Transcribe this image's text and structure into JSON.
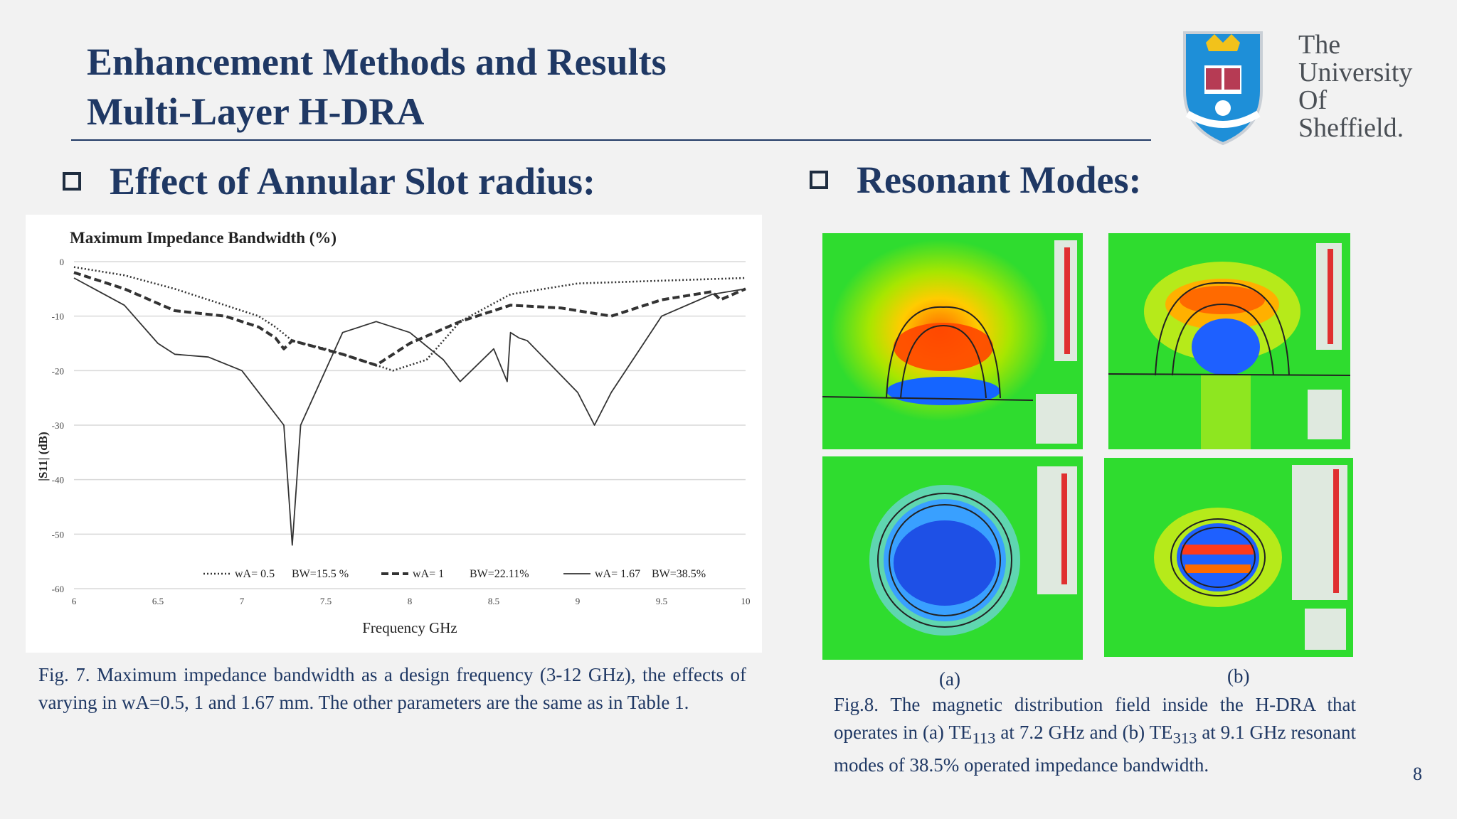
{
  "slide": {
    "title_line1": "Enhancement Methods and Results",
    "title_line2": "Multi-Layer H-DRA",
    "page_number": "8"
  },
  "logo": {
    "line1": "The",
    "line2": "University",
    "line3": "Of",
    "line4": "Sheffield."
  },
  "left": {
    "heading": "Effect of Annular Slot radius:",
    "caption": "Fig. 7. Maximum impedance bandwidth as a design frequency (3-12 GHz), the effects of varying in wA=0.5, 1 and 1.67 mm. The other parameters are the same as in Table 1."
  },
  "right": {
    "heading": "Resonant Modes:",
    "label_a": "(a)",
    "label_b": "(b)",
    "caption_part1": "Fig.8. The magnetic distribution field inside the H-DRA that operates in (a) TE",
    "sub1": "113",
    "caption_part2": " at 7.2 GHz and (b) TE",
    "sub2": "313",
    "caption_part3": " at 9.1 GHz resonant modes of 38.5% operated impedance bandwidth."
  },
  "chart_data": {
    "type": "line",
    "title": "Maximum Impedance Bandwidth (%)",
    "xlabel": "Frequency GHz",
    "ylabel": "|S11| (dB)",
    "xlim": [
      6,
      10
    ],
    "ylim": [
      -60,
      0
    ],
    "x_ticks": [
      "6",
      "6.5",
      "7",
      "7.5",
      "8",
      "8.5",
      "9",
      "9.5",
      "10"
    ],
    "y_ticks": [
      "0",
      "-10",
      "-20",
      "-30",
      "-40",
      "-50",
      "-60"
    ],
    "grid": true,
    "legend_position": "bottom",
    "series": [
      {
        "name": "wA= 0.5",
        "bw_label": "BW=15.5 %",
        "style": "dotted",
        "x": [
          6.0,
          6.3,
          6.6,
          6.9,
          7.1,
          7.2,
          7.3,
          7.5,
          7.7,
          7.9,
          8.1,
          8.3,
          8.6,
          9.0,
          9.5,
          10.0
        ],
        "y": [
          -1,
          -2.5,
          -5,
          -8,
          -10,
          -12,
          -14.5,
          -16,
          -18,
          -20,
          -18,
          -11,
          -6,
          -4,
          -3.5,
          -3
        ]
      },
      {
        "name": "wA= 1",
        "bw_label": "BW=22.11%",
        "style": "dashed",
        "x": [
          6.0,
          6.3,
          6.6,
          6.9,
          7.1,
          7.2,
          7.25,
          7.3,
          7.6,
          7.8,
          8.0,
          8.3,
          8.6,
          8.9,
          9.2,
          9.5,
          9.8,
          9.85,
          10.0
        ],
        "y": [
          -2,
          -5,
          -9,
          -10,
          -12,
          -14,
          -16,
          -14.5,
          -17,
          -19,
          -15,
          -11,
          -8,
          -8.5,
          -10,
          -7,
          -5.5,
          -7,
          -5
        ]
      },
      {
        "name": "wA= 1.67",
        "bw_label": "BW=38.5%",
        "style": "solid",
        "x": [
          6.0,
          6.3,
          6.5,
          6.6,
          6.8,
          7.0,
          7.15,
          7.25,
          7.3,
          7.35,
          7.6,
          7.8,
          8.0,
          8.2,
          8.3,
          8.5,
          8.58,
          8.6,
          8.65,
          8.7,
          9.0,
          9.1,
          9.2,
          9.5,
          9.8,
          10.0
        ],
        "y": [
          -3,
          -8,
          -15,
          -17,
          -17.5,
          -20,
          -26,
          -30,
          -52,
          -30,
          -13,
          -11,
          -13,
          -18,
          -22,
          -16,
          -22,
          -13,
          -14,
          -14.5,
          -24,
          -30,
          -24,
          -10,
          -6,
          -5
        ]
      }
    ]
  }
}
